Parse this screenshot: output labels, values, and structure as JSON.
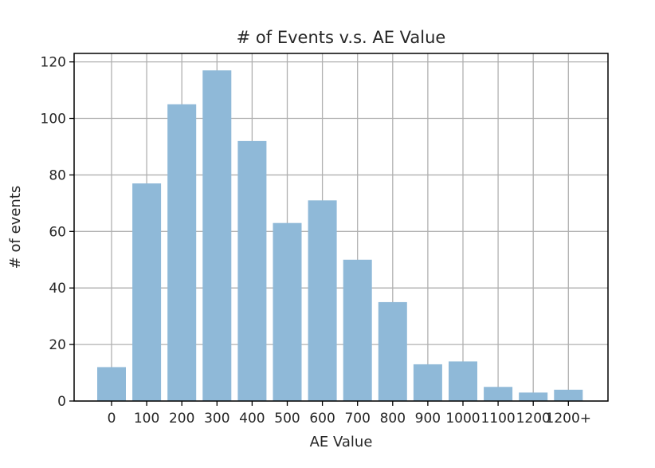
{
  "chart_data": {
    "type": "bar",
    "title": "# of Events v.s. AE Value",
    "xlabel": "AE Value",
    "ylabel": "# of events",
    "categories": [
      "0",
      "100",
      "200",
      "300",
      "400",
      "500",
      "600",
      "700",
      "800",
      "900",
      "1000",
      "1100",
      "1200",
      "1200+"
    ],
    "values": [
      12,
      77,
      105,
      117,
      92,
      63,
      71,
      50,
      35,
      13,
      14,
      5,
      3,
      4
    ],
    "ylim": [
      0,
      123
    ],
    "yticks": [
      0,
      20,
      40,
      60,
      80,
      100,
      120
    ],
    "grid": true,
    "legend": "none",
    "bar_color": "#8fb9d8"
  }
}
